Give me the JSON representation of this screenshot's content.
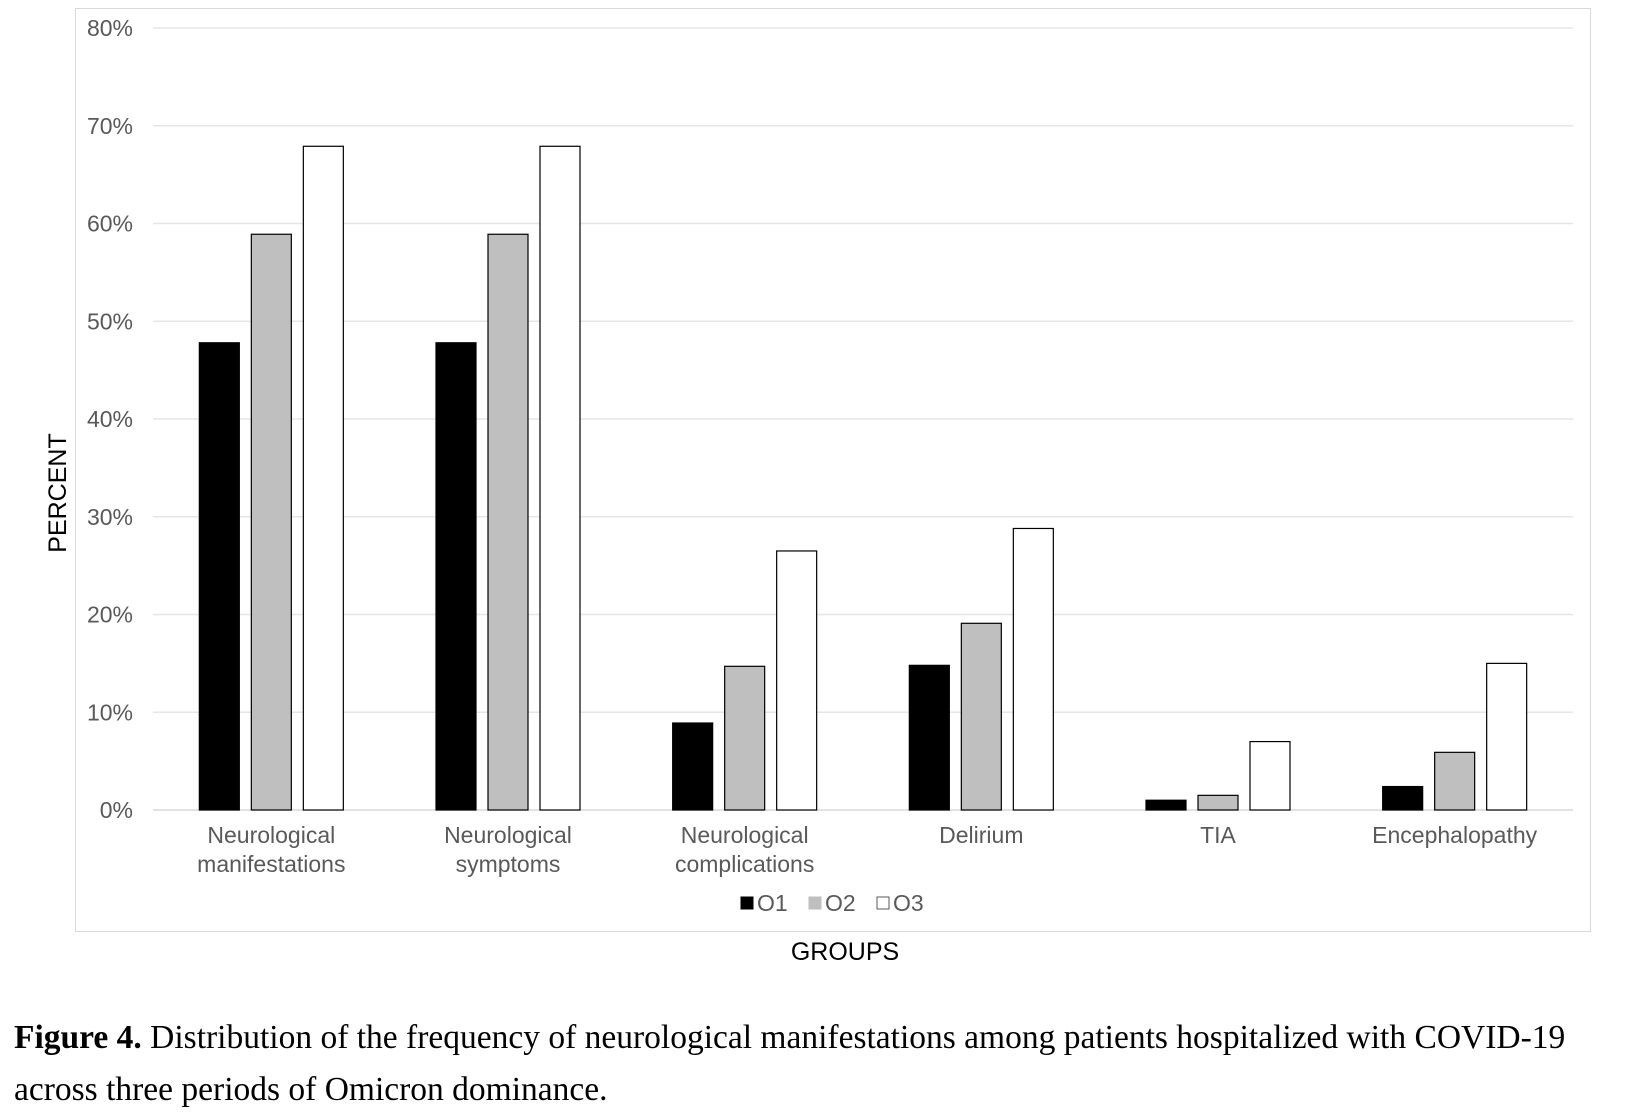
{
  "chart_data": {
    "type": "bar",
    "categories": [
      [
        "Neurological",
        "manifestations"
      ],
      [
        "Neurological",
        "symptoms"
      ],
      [
        "Neurological",
        "complications"
      ],
      [
        "Delirium"
      ],
      [
        "TIA"
      ],
      [
        "Encephalopathy"
      ]
    ],
    "series": [
      {
        "name": "O1",
        "color": "#000000",
        "values": [
          47.8,
          47.8,
          8.9,
          14.8,
          1.0,
          2.4
        ]
      },
      {
        "name": "O2",
        "color": "#bfbfbf",
        "values": [
          58.9,
          58.9,
          14.7,
          19.1,
          1.5,
          5.9
        ]
      },
      {
        "name": "O3",
        "color": "#ffffff",
        "values": [
          67.9,
          67.9,
          26.5,
          28.8,
          7.0,
          15.0
        ]
      }
    ],
    "xlabel": "GROUPS",
    "ylabel": "PERCENT",
    "ylim": [
      0,
      80
    ],
    "yticks": [
      "0%",
      "10%",
      "20%",
      "30%",
      "40%",
      "50%",
      "60%",
      "70%",
      "80%"
    ],
    "grid": true,
    "legend_position": "bottom"
  },
  "caption": {
    "label": "Figure 4.",
    "text": " Distribution of the frequency of neurological manifestations among patients hospitalized with COVID-19 across three periods of Omicron dominance."
  }
}
